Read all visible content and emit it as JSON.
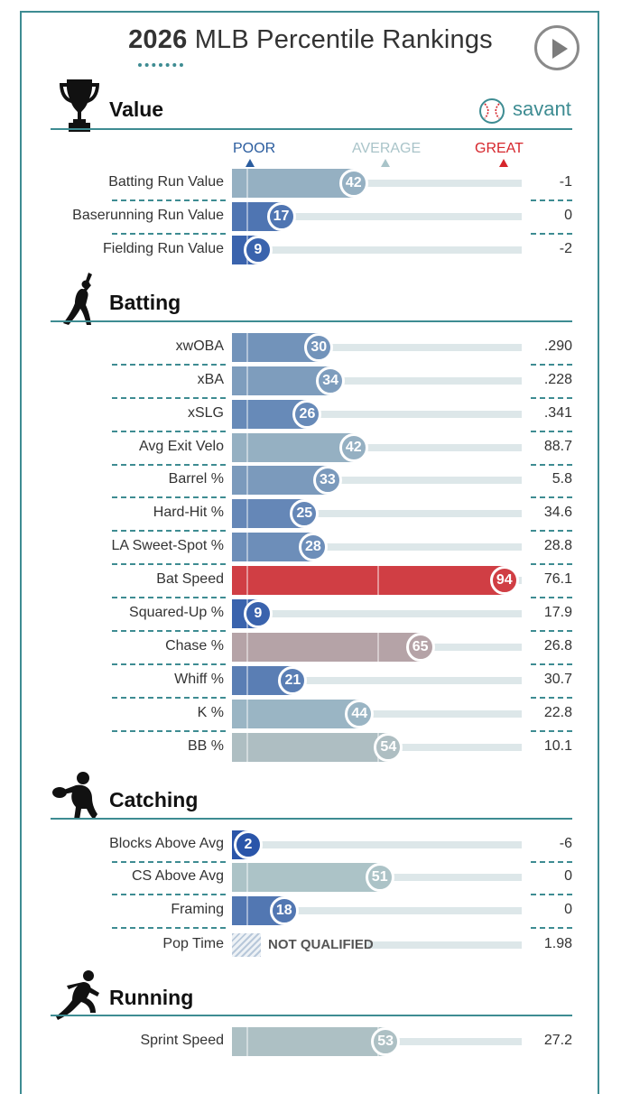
{
  "title": {
    "year": "2026",
    "rest": "MLB Percentile Rankings"
  },
  "savant_label": "savant",
  "legend": {
    "poor": "POOR",
    "average": "AVERAGE",
    "great": "GREAT",
    "poor_color": "#2a5c9e",
    "average_color": "#a9c4c9",
    "great_color": "#d6262c"
  },
  "sections": {
    "value": "Value",
    "batting": "Batting",
    "catching": "Catching",
    "running": "Running"
  },
  "not_qualified_label": "NOT QUALIFIED",
  "chart_data": {
    "type": "bar",
    "title": "2026 MLB Percentile Rankings",
    "xlim": [
      0,
      100
    ],
    "groups": [
      {
        "section": "Value",
        "rows": [
          {
            "metric": "Batting Run Value",
            "percentile": 42,
            "stat": "-1"
          },
          {
            "metric": "Baserunning Run Value",
            "percentile": 17,
            "stat": "0"
          },
          {
            "metric": "Fielding Run Value",
            "percentile": 9,
            "stat": "-2"
          }
        ]
      },
      {
        "section": "Batting",
        "rows": [
          {
            "metric": "xwOBA",
            "percentile": 30,
            "stat": ".290"
          },
          {
            "metric": "xBA",
            "percentile": 34,
            "stat": ".228"
          },
          {
            "metric": "xSLG",
            "percentile": 26,
            "stat": ".341"
          },
          {
            "metric": "Avg Exit Velo",
            "percentile": 42,
            "stat": "88.7"
          },
          {
            "metric": "Barrel %",
            "percentile": 33,
            "stat": "5.8"
          },
          {
            "metric": "Hard-Hit %",
            "percentile": 25,
            "stat": "34.6"
          },
          {
            "metric": "LA Sweet-Spot %",
            "percentile": 28,
            "stat": "28.8"
          },
          {
            "metric": "Bat Speed",
            "percentile": 94,
            "stat": "76.1"
          },
          {
            "metric": "Squared-Up %",
            "percentile": 9,
            "stat": "17.9"
          },
          {
            "metric": "Chase %",
            "percentile": 65,
            "stat": "26.8"
          },
          {
            "metric": "Whiff %",
            "percentile": 21,
            "stat": "30.7"
          },
          {
            "metric": "K %",
            "percentile": 44,
            "stat": "22.8"
          },
          {
            "metric": "BB %",
            "percentile": 54,
            "stat": "10.1"
          }
        ]
      },
      {
        "section": "Catching",
        "rows": [
          {
            "metric": "Blocks Above Avg",
            "percentile": 2,
            "stat": "-6"
          },
          {
            "metric": "CS Above Avg",
            "percentile": 51,
            "stat": "0"
          },
          {
            "metric": "Framing",
            "percentile": 18,
            "stat": "0"
          },
          {
            "metric": "Pop Time",
            "percentile": null,
            "stat": "1.98"
          }
        ]
      },
      {
        "section": "Running",
        "rows": [
          {
            "metric": "Sprint Speed",
            "percentile": 53,
            "stat": "27.2"
          }
        ]
      }
    ]
  }
}
